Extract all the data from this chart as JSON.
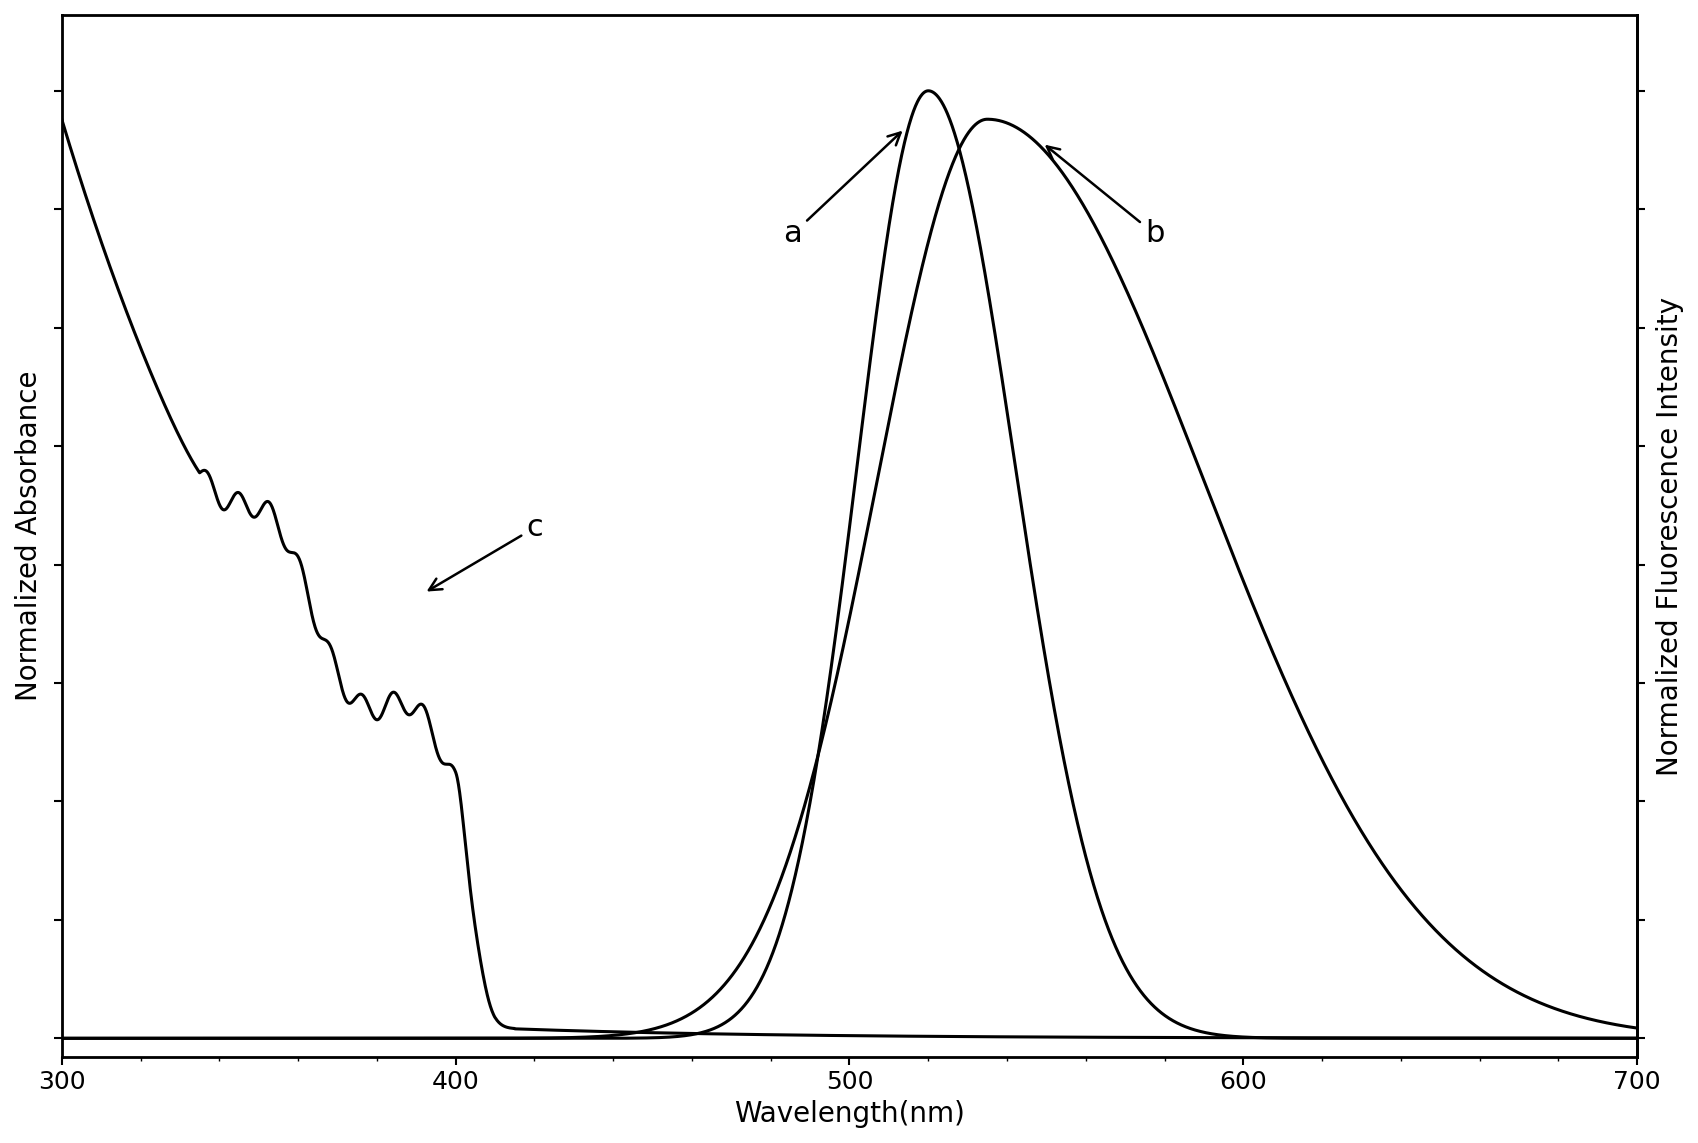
{
  "x_min": 300,
  "x_max": 700,
  "xlabel": "Wavelength(nm)",
  "ylabel_left": "Normalized Absorbance",
  "ylabel_right": "Normalized Fluorescence Intensity",
  "xticks": [
    300,
    400,
    500,
    600,
    700
  ],
  "background_color": "#ffffff",
  "line_color": "#000000",
  "fontsize_label": 20,
  "fontsize_tick": 18,
  "fontsize_annotation": 22,
  "linewidth": 2.2,
  "fig_width": 16.99,
  "fig_height": 11.43,
  "dpi": 100
}
